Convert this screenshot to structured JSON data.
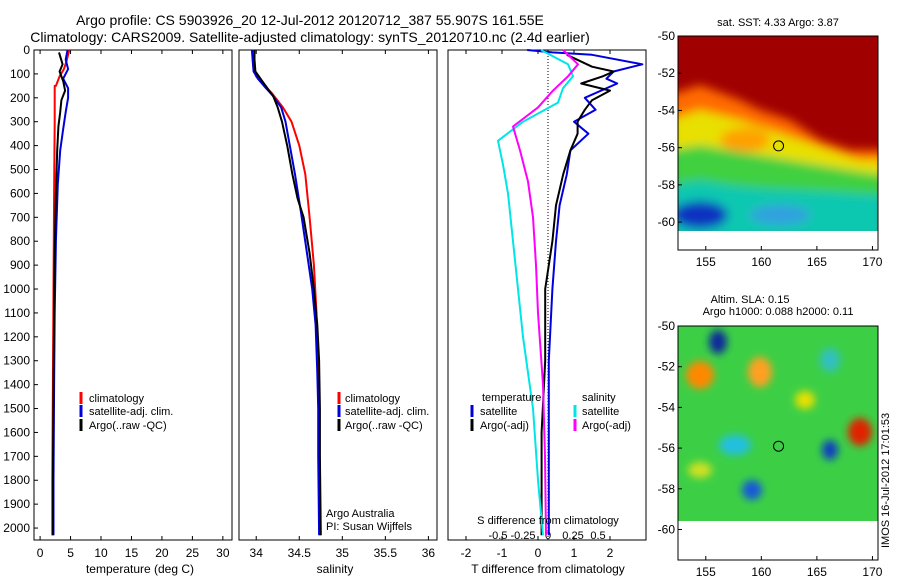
{
  "title_line1": "Argo profile: CS 5903926_20 12-Jul-2012 20120712_387 55.907S 161.55E",
  "title_line2": "Climatology: CARS2009. Satellite-adjusted climatology: synTS_20120710.nc (2.4d earlier)",
  "colors": {
    "climatology": "#ff0000",
    "satellite": "#0000dd",
    "argo": "#000000",
    "sat_salinity": "#00e5e5",
    "argo_salinity": "#ff00ff"
  },
  "chart_data": [
    {
      "type": "line",
      "xlabel": "temperature (deg C)",
      "ylabel": "",
      "xlim": [
        -1,
        31.5
      ],
      "ylim": [
        2050,
        0
      ],
      "x_ticks": [
        "0",
        "5",
        "10",
        "15",
        "20",
        "25",
        "30"
      ],
      "y_ticks": [
        "0",
        "100",
        "200",
        "300",
        "400",
        "500",
        "600",
        "700",
        "800",
        "900",
        "1000",
        "1100",
        "1200",
        "1300",
        "1400",
        "1500",
        "1600",
        "1700",
        "1800",
        "1900",
        "2000"
      ],
      "legend_position": "center",
      "legend": [
        "climatology",
        "satellite-adj. clim.",
        "Argo(..raw -QC)"
      ],
      "series": [
        {
          "name": "climatology",
          "color": "#ff0000",
          "points": [
            [
              2.4,
              150
            ],
            [
              2.4,
              300
            ],
            [
              2.3,
              600
            ],
            [
              2.2,
              1000
            ],
            [
              2.1,
              1400
            ],
            [
              2.0,
              1800
            ],
            [
              2.0,
              2030
            ]
          ],
          "head": [
            [
              4.8,
              0
            ],
            [
              4.6,
              20
            ],
            [
              4.3,
              50
            ],
            [
              3.9,
              80
            ],
            [
              3.2,
              110
            ],
            [
              2.6,
              150
            ]
          ]
        },
        {
          "name": "satellite-adj. clim.",
          "color": "#0000dd",
          "points": [
            [
              4.5,
              0
            ],
            [
              4.2,
              40
            ],
            [
              4.6,
              80
            ],
            [
              3.8,
              120
            ],
            [
              4.6,
              160
            ],
            [
              4.6,
              200
            ],
            [
              4.2,
              260
            ],
            [
              3.8,
              330
            ],
            [
              3.3,
              420
            ],
            [
              2.9,
              560
            ],
            [
              2.6,
              800
            ],
            [
              2.4,
              1100
            ],
            [
              2.3,
              1400
            ],
            [
              2.2,
              1800
            ],
            [
              2.2,
              2030
            ]
          ]
        },
        {
          "name": "Argo(..raw -QC)",
          "color": "#000000",
          "points": [
            [
              3.1,
              10
            ],
            [
              3.7,
              60
            ],
            [
              3.2,
              90
            ],
            [
              3.8,
              130
            ],
            [
              4.1,
              170
            ],
            [
              3.5,
              210
            ],
            [
              3.3,
              260
            ],
            [
              3.0,
              320
            ],
            [
              2.8,
              420
            ],
            [
              2.6,
              600
            ],
            [
              2.4,
              850
            ],
            [
              2.3,
              1100
            ],
            [
              2.2,
              1400
            ],
            [
              2.1,
              1800
            ],
            [
              2.1,
              2030
            ]
          ]
        }
      ]
    },
    {
      "type": "line",
      "xlabel": "salinity",
      "ylabel": "",
      "xlim": [
        33.8,
        36.1
      ],
      "ylim": [
        2050,
        0
      ],
      "x_ticks": [
        "34",
        "34.5",
        "35",
        "35.5",
        "36"
      ],
      "legend_position": "center",
      "legend": [
        "climatology",
        "satellite-adj. clim.",
        "Argo(..raw -QC)"
      ],
      "annotation": [
        "Argo Australia",
        "PI: Susan Wijffels"
      ],
      "series": [
        {
          "name": "climatology",
          "color": "#ff0000",
          "points": [
            [
              33.96,
              0
            ],
            [
              33.96,
              40
            ],
            [
              33.97,
              80
            ],
            [
              34.0,
              110
            ],
            [
              34.07,
              140
            ],
            [
              34.18,
              180
            ],
            [
              34.31,
              240
            ],
            [
              34.41,
              300
            ],
            [
              34.5,
              400
            ],
            [
              34.57,
              520
            ],
            [
              34.62,
              700
            ],
            [
              34.67,
              900
            ],
            [
              34.7,
              1100
            ],
            [
              34.72,
              1400
            ],
            [
              34.73,
              1700
            ],
            [
              34.74,
              2030
            ]
          ]
        },
        {
          "name": "satellite-adj. clim.",
          "color": "#0000dd",
          "points": [
            [
              33.95,
              0
            ],
            [
              33.96,
              50
            ],
            [
              33.97,
              90
            ],
            [
              34.02,
              120
            ],
            [
              34.09,
              150
            ],
            [
              34.19,
              190
            ],
            [
              34.29,
              240
            ],
            [
              34.34,
              300
            ],
            [
              34.39,
              400
            ],
            [
              34.45,
              520
            ],
            [
              34.52,
              680
            ],
            [
              34.59,
              850
            ],
            [
              34.65,
              1000
            ],
            [
              34.69,
              1150
            ],
            [
              34.71,
              1350
            ],
            [
              34.72,
              1500
            ],
            [
              34.72,
              1700
            ],
            [
              34.73,
              2030
            ]
          ]
        },
        {
          "name": "Argo(..raw -QC)",
          "color": "#000000",
          "points": [
            [
              33.98,
              0
            ],
            [
              33.98,
              40
            ],
            [
              33.99,
              90
            ],
            [
              34.07,
              130
            ],
            [
              34.13,
              160
            ],
            [
              34.2,
              195
            ],
            [
              34.25,
              240
            ],
            [
              34.3,
              300
            ],
            [
              34.36,
              400
            ],
            [
              34.42,
              520
            ],
            [
              34.48,
              620
            ],
            [
              34.55,
              700
            ],
            [
              34.62,
              850
            ],
            [
              34.67,
              1000
            ],
            [
              34.71,
              1150
            ],
            [
              34.73,
              1300
            ],
            [
              34.74,
              1500
            ],
            [
              34.74,
              1700
            ],
            [
              34.75,
              2030
            ]
          ]
        }
      ]
    },
    {
      "type": "line",
      "xlabel": "T difference from climatology",
      "xlabel_top": "S difference from climatology",
      "ylabel": "",
      "xlim": [
        -2.5,
        3.0
      ],
      "ylim": [
        2050,
        0
      ],
      "x_ticks": [
        "-2",
        "-1",
        "0",
        "1",
        "2"
      ],
      "x_ticks_top": [
        "-0.5",
        "-0.25",
        "0",
        "0.25",
        "0.5"
      ],
      "legend": {
        "temperature_title": "temperature",
        "salinity_title": "salinity",
        "items": [
          "satellite",
          "Argo(-adj)",
          "satellite",
          "Argo(-adj)"
        ]
      },
      "series": [
        {
          "name": "T satellite",
          "color": "#0000dd",
          "points": [
            [
              -0.3,
              0
            ],
            [
              0.4,
              10
            ],
            [
              1.5,
              20
            ],
            [
              2.9,
              60
            ],
            [
              2.1,
              90
            ],
            [
              1.9,
              120
            ],
            [
              2.2,
              140
            ],
            [
              1.3,
              200
            ],
            [
              1.6,
              250
            ],
            [
              1.0,
              300
            ],
            [
              1.4,
              350
            ],
            [
              0.9,
              420
            ],
            [
              0.8,
              520
            ],
            [
              0.6,
              650
            ],
            [
              0.5,
              800
            ],
            [
              0.4,
              1000
            ],
            [
              0.3,
              1300
            ],
            [
              0.3,
              1600
            ],
            [
              0.3,
              2030
            ]
          ]
        },
        {
          "name": "T Argo(-adj)",
          "color": "#000000",
          "points": [
            [
              0.8,
              20
            ],
            [
              1.5,
              70
            ],
            [
              2.1,
              90
            ],
            [
              1.8,
              110
            ],
            [
              1.2,
              140
            ],
            [
              2.0,
              170
            ],
            [
              1.5,
              210
            ],
            [
              1.3,
              250
            ],
            [
              1.1,
              300
            ],
            [
              1.1,
              350
            ],
            [
              0.9,
              420
            ],
            [
              0.7,
              520
            ],
            [
              0.5,
              650
            ],
            [
              0.4,
              800
            ],
            [
              0.2,
              1000
            ],
            [
              0.2,
              1300
            ],
            [
              0.1,
              1600
            ],
            [
              0.1,
              2030
            ]
          ]
        },
        {
          "name": "S satellite",
          "color": "#00e5e5",
          "points": [
            [
              -0.07,
              0
            ],
            [
              0.2,
              60
            ],
            [
              0.25,
              110
            ],
            [
              0.15,
              160
            ],
            [
              0.1,
              220
            ],
            [
              -0.25,
              300
            ],
            [
              -0.5,
              380
            ],
            [
              -0.45,
              480
            ],
            [
              -0.4,
              600
            ],
            [
              -0.35,
              800
            ],
            [
              -0.3,
              1000
            ],
            [
              -0.25,
              1200
            ],
            [
              -0.15,
              1500
            ],
            [
              -0.1,
              1800
            ],
            [
              -0.05,
              2030
            ]
          ]
        },
        {
          "name": "S Argo(-adj)",
          "color": "#ff00ff",
          "points": [
            [
              0.15,
              0
            ],
            [
              0.3,
              60
            ],
            [
              0.2,
              110
            ],
            [
              0.05,
              170
            ],
            [
              -0.1,
              240
            ],
            [
              -0.35,
              320
            ],
            [
              -0.28,
              420
            ],
            [
              -0.2,
              550
            ],
            [
              -0.15,
              700
            ],
            [
              -0.12,
              900
            ],
            [
              -0.1,
              1100
            ],
            [
              -0.05,
              1400
            ],
            [
              -0.03,
              1700
            ],
            [
              -0.02,
              2030
            ]
          ]
        }
      ]
    },
    {
      "type": "heatmap",
      "title": "sat. SST: 4.33 Argo: 3.87",
      "x_ticks": [
        "155",
        "160",
        "165",
        "170"
      ],
      "y_ticks": [
        "-50",
        "-52",
        "-54",
        "-56",
        "-58",
        "-60"
      ],
      "xlim": [
        152.5,
        170.5
      ],
      "ylim": [
        -61.5,
        -50
      ],
      "argo_position": [
        161.55,
        -55.907
      ]
    },
    {
      "type": "heatmap",
      "title_line1": "Altim. SLA: 0.15",
      "title_line2": "Argo h1000: 0.088 h2000: 0.11",
      "x_ticks": [
        "155",
        "160",
        "165",
        "170"
      ],
      "y_ticks": [
        "-50",
        "-52",
        "-54",
        "-56",
        "-58",
        "-60"
      ],
      "xlim": [
        152.5,
        170.5
      ],
      "ylim": [
        -61.5,
        -50
      ],
      "argo_position": [
        161.55,
        -55.907
      ]
    }
  ],
  "footer": "IMOS 16-Jul-2012 17:01:53"
}
